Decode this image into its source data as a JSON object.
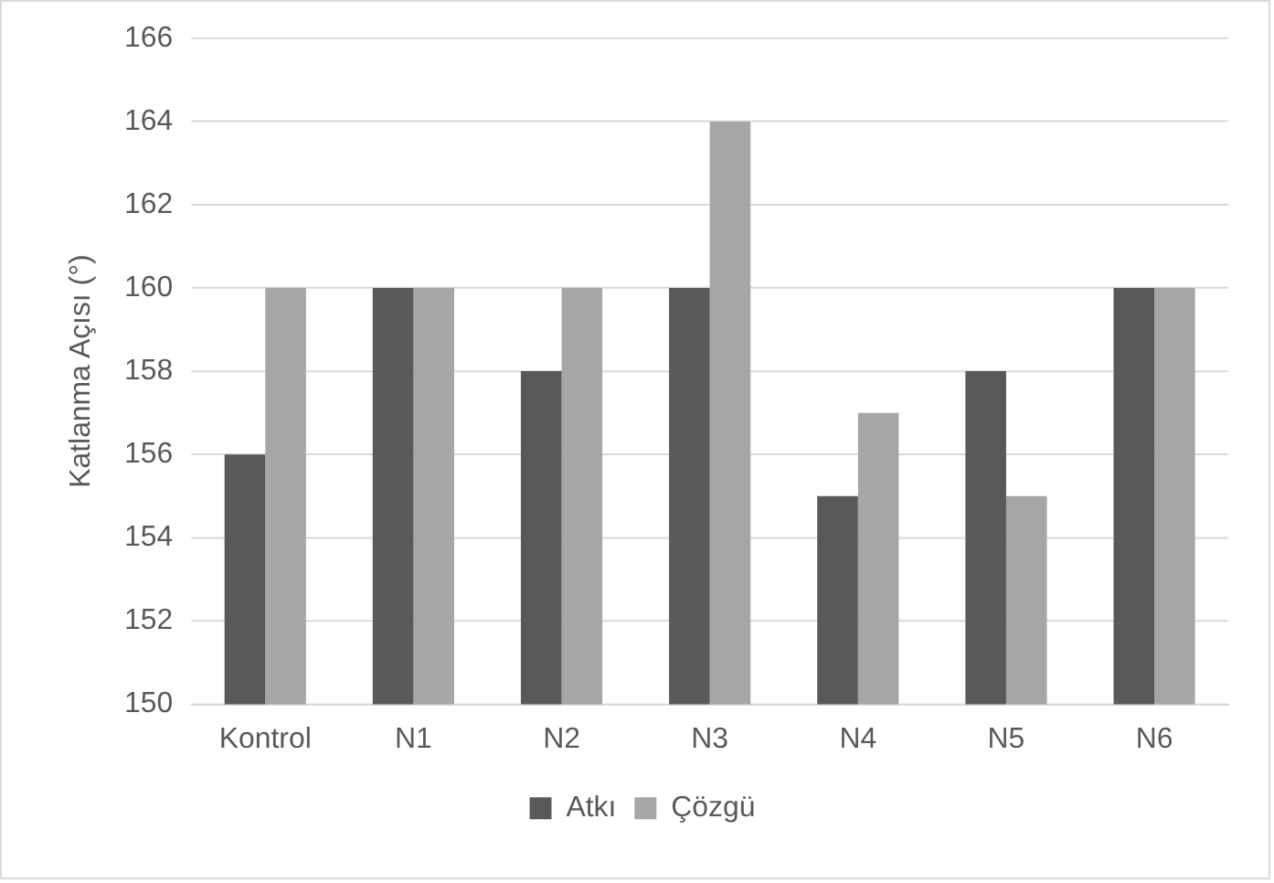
{
  "chart_data": {
    "type": "bar",
    "ylabel": "Katlanma Açısı (°)",
    "categories": [
      "Kontrol",
      "N1",
      "N2",
      "N3",
      "N4",
      "N5",
      "N6"
    ],
    "series": [
      {
        "name": "Atkı",
        "color": "#595959",
        "values": [
          156,
          160,
          158,
          160,
          155,
          158,
          160
        ]
      },
      {
        "name": "Çözgü",
        "color": "#a6a6a6",
        "values": [
          160,
          160,
          160,
          164,
          157,
          155,
          160
        ]
      }
    ],
    "ylim": [
      150,
      166
    ],
    "yticks": [
      150,
      152,
      154,
      156,
      158,
      160,
      162,
      164,
      166
    ],
    "grid": "y",
    "legend": "bottom"
  }
}
